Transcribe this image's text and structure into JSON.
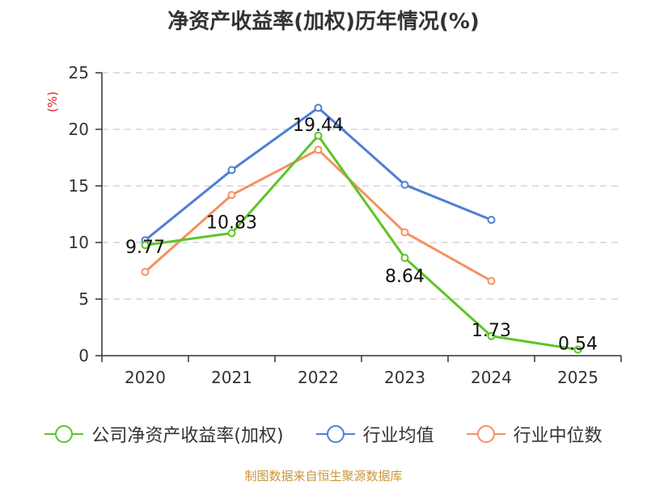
{
  "title": "净资产收益率(加权)历年情况(%)",
  "source": "制图数据来自恒生聚源数据库",
  "chart_data": {
    "type": "line",
    "title": "净资产收益率(加权)历年情况(%)",
    "ylabel": "(%)",
    "xlabel": "",
    "ylim": [
      0,
      25
    ],
    "yticks": [
      0,
      5,
      10,
      15,
      20,
      25
    ],
    "grid": true,
    "legend_position": "bottom",
    "categories": [
      "2020",
      "2021",
      "2022",
      "2023",
      "2024",
      "2025"
    ],
    "series": [
      {
        "name": "公司净资产收益率(加权)",
        "color": "#5dc526",
        "values": [
          9.77,
          10.83,
          19.44,
          8.64,
          1.73,
          0.54
        ],
        "labels": [
          "9.77",
          "10.83",
          "19.44",
          "8.64",
          "1.73",
          "0.54"
        ]
      },
      {
        "name": "行业均值",
        "color": "#4e7ed6",
        "values": [
          10.2,
          16.4,
          21.9,
          15.1,
          12.0,
          null
        ]
      },
      {
        "name": "行业中位数",
        "color": "#f59160",
        "values": [
          7.4,
          14.2,
          18.2,
          10.9,
          6.6,
          null
        ]
      }
    ]
  }
}
